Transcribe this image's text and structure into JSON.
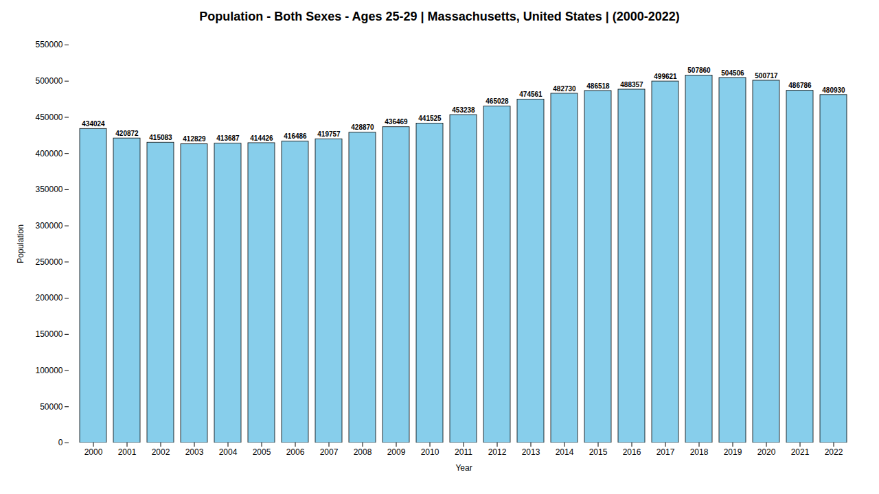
{
  "chart_data": {
    "type": "bar",
    "title": "Population - Both Sexes - Ages 25-29 | Massachusetts, United States |  (2000-2022)",
    "xlabel": "Year",
    "ylabel": "Population",
    "categories": [
      "2000",
      "2001",
      "2002",
      "2003",
      "2004",
      "2005",
      "2006",
      "2007",
      "2008",
      "2009",
      "2010",
      "2011",
      "2012",
      "2013",
      "2014",
      "2015",
      "2016",
      "2017",
      "2018",
      "2019",
      "2020",
      "2021",
      "2022"
    ],
    "values": [
      434024,
      420872,
      415083,
      412829,
      413687,
      414426,
      416486,
      419757,
      428870,
      436469,
      441525,
      453238,
      465028,
      474561,
      482730,
      486518,
      488357,
      499621,
      507860,
      504506,
      500717,
      486786,
      480930
    ],
    "color": "#87ceeb",
    "ylim": [
      0,
      550000
    ],
    "yticks": [
      0,
      50000,
      100000,
      150000,
      200000,
      250000,
      300000,
      350000,
      400000,
      450000,
      500000,
      550000
    ],
    "grid": false,
    "data_labels": true
  }
}
